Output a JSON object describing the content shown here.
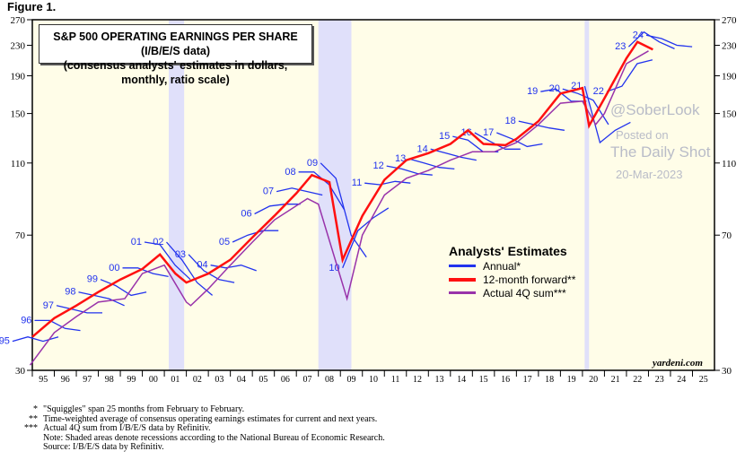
{
  "figure_label": "Figure 1.",
  "watermark": {
    "posted": "Posted on",
    "site": "The Daily Shot",
    "date": "20-Mar-2023",
    "handle": "@SoberLook"
  },
  "source_mark": "yardeni.com",
  "footnotes": [
    {
      "mark": "*",
      "text": "\"Squiggles\" span 25 months from February to February."
    },
    {
      "mark": "**",
      "text": "Time-weighted average of consensus operating earnings estimates for current and next years."
    },
    {
      "mark": "***",
      "text": "Actual 4Q sum from I/B/E/S data by Refinitiv."
    },
    {
      "mark": "",
      "text": "Note: Shaded areas denote recessions according to the National Bureau of Economic Research."
    },
    {
      "mark": "",
      "text": "Source: I/B/E/S data by Refinitiv."
    }
  ],
  "chart_data": {
    "type": "line",
    "title": "S&P 500 OPERATING EARNINGS PER SHARE (I/B/E/S data)",
    "subtitle": "(consensus analysts' estimates in dollars, monthly, ratio scale)",
    "y_scale": "log",
    "ylim": [
      30,
      270
    ],
    "yticks": [
      30,
      70,
      110,
      150,
      190,
      230,
      270
    ],
    "xlim": [
      1995,
      2026
    ],
    "xtick_labels": [
      "95",
      "96",
      "97",
      "98",
      "99",
      "00",
      "01",
      "02",
      "03",
      "04",
      "05",
      "06",
      "07",
      "08",
      "09",
      "10",
      "11",
      "12",
      "13",
      "14",
      "15",
      "16",
      "17",
      "18",
      "19",
      "20",
      "21",
      "22",
      "23",
      "24",
      "25"
    ],
    "legend": {
      "title": "Analysts' Estimates",
      "placement": "center-right"
    },
    "recessions": [
      [
        2001.2,
        2001.9
      ],
      [
        2008.0,
        2009.5
      ],
      [
        2020.1,
        2020.3
      ]
    ],
    "colors": {
      "annual": "#2233ee",
      "forward": "#ff1010",
      "actual": "#9933aa",
      "recession": "#e0e0fa",
      "background": "#fffde8"
    },
    "series": [
      {
        "name": "12-month forward**",
        "key": "forward",
        "x": [
          1995,
          1996,
          1997,
          1998,
          1999,
          2000,
          2000.8,
          2001.5,
          2002,
          2003,
          2004,
          2005,
          2006,
          2007,
          2007.7,
          2008.5,
          2009.1,
          2010,
          2011,
          2012,
          2013,
          2014,
          2014.8,
          2015.5,
          2016.5,
          2017,
          2018,
          2019,
          2020,
          2020.3,
          2021,
          2022,
          2022.5,
          2023.2
        ],
        "y": [
          37,
          41.6,
          45,
          49,
          53,
          56.6,
          62,
          55,
          52,
          55,
          60,
          69,
          79,
          91,
          102,
          97.6,
          60,
          79,
          99,
          112,
          117,
          124,
          135,
          124,
          123,
          128,
          143,
          170,
          176,
          139,
          165,
          212,
          235,
          224
        ]
      },
      {
        "name": "Actual 4Q sum***",
        "key": "actual",
        "x": [
          1994.9,
          1996,
          1997,
          1998,
          1999.2,
          2000,
          2001,
          2002,
          2002.2,
          2003,
          2004,
          2005,
          2006,
          2007.5,
          2008,
          2009.3,
          2010,
          2011,
          2012,
          2013,
          2014,
          2015,
          2016,
          2017,
          2018,
          2019,
          2020,
          2020.6,
          2021,
          2022,
          2023
        ],
        "y": [
          31,
          38,
          42,
          46,
          47,
          55,
          58,
          46,
          45,
          50,
          58,
          67,
          77,
          88,
          85,
          47,
          70,
          90,
          100,
          105,
          112,
          118,
          118,
          125,
          140,
          160,
          162,
          140,
          150,
          205,
          222
        ]
      },
      {
        "name": "Annual*",
        "key": "annual",
        "squiggles": [
          {
            "label": "95",
            "start": 1994.1,
            "y": [
              36,
              37,
              36,
              37
            ]
          },
          {
            "label": "96",
            "start": 1995.1,
            "y": [
              41,
              41,
              39,
              38.5
            ]
          },
          {
            "label": "97",
            "start": 1996.1,
            "y": [
              45,
              44,
              43,
              43
            ]
          },
          {
            "label": "98",
            "start": 1997.1,
            "y": [
              49,
              48,
              47,
              45
            ]
          },
          {
            "label": "99",
            "start": 1998.1,
            "y": [
              53,
              51,
              48,
              49
            ]
          },
          {
            "label": "00",
            "start": 1999.1,
            "y": [
              57,
              57,
              55,
              54
            ]
          },
          {
            "label": "01",
            "start": 2000.1,
            "y": [
              67,
              66,
              58,
              53
            ]
          },
          {
            "label": "02",
            "start": 2001.1,
            "y": [
              67,
              60,
              52,
              48
            ]
          },
          {
            "label": "03",
            "start": 2002.1,
            "y": [
              62,
              56,
              53,
              52
            ]
          },
          {
            "label": "04",
            "start": 2003.1,
            "y": [
              58,
              57,
              58,
              56
            ]
          },
          {
            "label": "05",
            "start": 2004.1,
            "y": [
              67,
              70,
              72,
              72
            ]
          },
          {
            "label": "06",
            "start": 2005.1,
            "y": [
              80,
              84,
              85,
              85
            ]
          },
          {
            "label": "07",
            "start": 2006.1,
            "y": [
              92,
              94,
              92,
              90
            ]
          },
          {
            "label": "08",
            "start": 2007.1,
            "y": [
              104,
              104,
              96,
              82
            ]
          },
          {
            "label": "09",
            "start": 2008.1,
            "y": [
              110,
              100,
              70,
              61
            ]
          },
          {
            "label": "10",
            "start": 2009.1,
            "y": [
              57,
              72,
              78,
              83
            ]
          },
          {
            "label": "11",
            "start": 2010.1,
            "y": [
              97,
              96,
              98,
              97
            ]
          },
          {
            "label": "12",
            "start": 2011.1,
            "y": [
              108,
              106,
              103,
              102
            ]
          },
          {
            "label": "13",
            "start": 2012.1,
            "y": [
              113,
              110,
              107,
              106
            ]
          },
          {
            "label": "14",
            "start": 2013.1,
            "y": [
              120,
              117,
              114,
              112
            ]
          },
          {
            "label": "15",
            "start": 2014.1,
            "y": [
              130,
              127,
              118,
              118
            ]
          },
          {
            "label": "16",
            "start": 2015.1,
            "y": [
              133,
              126,
              120,
              120
            ]
          },
          {
            "label": "17",
            "start": 2016.1,
            "y": [
              133,
              128,
              122,
              124
            ]
          },
          {
            "label": "18",
            "start": 2017.1,
            "y": [
              143,
              140,
              137,
              135
            ]
          },
          {
            "label": "19",
            "start": 2018.1,
            "y": [
              172,
              175,
              162,
              162
            ]
          },
          {
            "label": "20",
            "start": 2019.1,
            "y": [
              175,
              170,
              163,
              140
            ]
          },
          {
            "label": "21",
            "start": 2020.1,
            "y": [
              178,
              125,
              135,
              142
            ]
          },
          {
            "label": "22",
            "start": 2021.1,
            "y": [
              172,
              178,
              205,
              210
            ]
          },
          {
            "label": "23",
            "start": 2022.1,
            "y": [
              228,
              250,
              235,
              225
            ]
          },
          {
            "label": "24",
            "start": 2022.9,
            "y": [
              245,
              240,
              230,
              228
            ]
          }
        ]
      }
    ]
  }
}
